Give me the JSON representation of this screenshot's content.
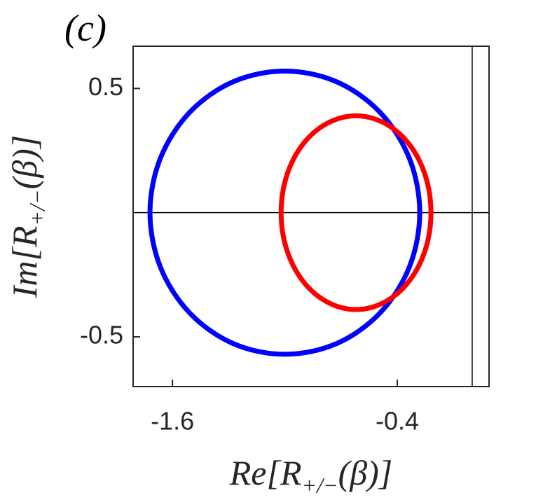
{
  "chart_data": {
    "type": "parametric",
    "title": "(c)",
    "xlabel": {
      "text": "Re[R",
      "subscript": "+/−",
      "after": "(β)]"
    },
    "ylabel": {
      "text": "Im[R",
      "subscript": "+/−",
      "after": "(β)]"
    },
    "xlim": [
      -1.81,
      0.09
    ],
    "xticks": [
      -1.6,
      -0.4
    ],
    "ylim": [
      -0.7,
      0.67
    ],
    "yticks": [
      -0.5,
      0.5
    ],
    "hline": 0,
    "vline": 0,
    "series": [
      {
        "color": "#0000ff",
        "x": [
          -0.28,
          -0.335,
          -0.491,
          -0.724,
          -1,
          -1.276,
          -1.509,
          -1.665,
          -1.72,
          -1.665,
          -1.509,
          -1.276,
          -1,
          -0.724,
          -0.491,
          -0.335,
          -0.28
        ],
        "y": [
          0,
          0.218,
          0.403,
          0.527,
          0.57,
          0.527,
          0.403,
          0.218,
          0,
          -0.218,
          -0.403,
          -0.527,
          -0.57,
          -0.527,
          -0.403,
          -0.218,
          0
        ]
      },
      {
        "color": "#ff0000",
        "x": [
          -0.22,
          -0.25,
          -0.337,
          -0.467,
          -0.62,
          -0.773,
          -0.903,
          -0.99,
          -1.02,
          -0.99,
          -0.903,
          -0.773,
          -0.62,
          -0.467,
          -0.337,
          -0.25,
          -0.22
        ],
        "y": [
          0,
          0.149,
          0.276,
          0.36,
          0.39,
          0.36,
          0.276,
          0.149,
          0,
          -0.149,
          -0.276,
          -0.36,
          -0.39,
          -0.36,
          -0.276,
          -0.149,
          0
        ]
      }
    ]
  }
}
